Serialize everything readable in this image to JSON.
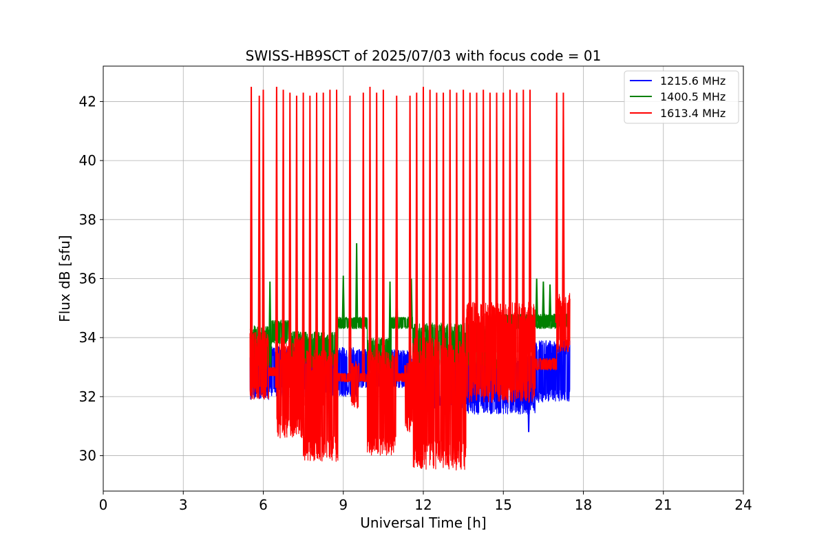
{
  "chart_data": {
    "type": "line",
    "title": "SWISS-HB9SCT of 2025/07/03 with focus code = 01",
    "xlabel": "Universal Time [h]",
    "ylabel": "Flux dB [sfu]",
    "xlim": [
      0,
      24
    ],
    "ylim": [
      28.8,
      43.2
    ],
    "xticks": [
      0,
      3,
      6,
      9,
      12,
      15,
      18,
      21,
      24
    ],
    "yticks": [
      30,
      32,
      34,
      36,
      38,
      40,
      42
    ],
    "grid": true,
    "legend_position": "top-right",
    "series": [
      {
        "name": "1215.6 MHz",
        "color": "#0000ff",
        "time_range": [
          5.5,
          17.5
        ],
        "segments": [
          {
            "start": 5.5,
            "end": 6.2,
            "low": 31.9,
            "high": 33.6
          },
          {
            "start": 6.2,
            "end": 9.5,
            "low": 32.0,
            "high": 33.7
          },
          {
            "start": 9.5,
            "end": 11.5,
            "low": 32.3,
            "high": 33.6
          },
          {
            "start": 11.5,
            "end": 13.6,
            "low": 31.6,
            "high": 33.5
          },
          {
            "start": 13.6,
            "end": 16.2,
            "low": 31.4,
            "high": 33.4
          },
          {
            "start": 16.2,
            "end": 17.5,
            "low": 31.8,
            "high": 33.9
          }
        ],
        "spikes": [
          {
            "x": 15.95,
            "y": 30.8
          }
        ]
      },
      {
        "name": "1400.5 MHz",
        "color": "#008000",
        "time_range": [
          5.5,
          17.5
        ],
        "segments": [
          {
            "start": 5.5,
            "end": 6.3,
            "low": 32.9,
            "high": 34.4
          },
          {
            "start": 6.3,
            "end": 7.0,
            "low": 33.8,
            "high": 34.6
          },
          {
            "start": 7.0,
            "end": 8.8,
            "low": 33.0,
            "high": 34.2
          },
          {
            "start": 8.8,
            "end": 9.9,
            "low": 34.3,
            "high": 34.7
          },
          {
            "start": 9.9,
            "end": 10.8,
            "low": 32.8,
            "high": 34.0
          },
          {
            "start": 10.8,
            "end": 11.6,
            "low": 34.3,
            "high": 34.7
          },
          {
            "start": 11.6,
            "end": 14.8,
            "low": 32.9,
            "high": 34.5
          },
          {
            "start": 14.8,
            "end": 16.3,
            "low": 34.3,
            "high": 34.8
          },
          {
            "start": 16.3,
            "end": 17.5,
            "low": 34.3,
            "high": 34.8
          }
        ],
        "spikes": [
          {
            "x": 6.25,
            "y": 35.9
          },
          {
            "x": 8.75,
            "y": 35.7
          },
          {
            "x": 9.0,
            "y": 36.1
          },
          {
            "x": 9.5,
            "y": 37.2
          },
          {
            "x": 10.75,
            "y": 35.9
          },
          {
            "x": 11.0,
            "y": 35.9
          },
          {
            "x": 11.55,
            "y": 36.0
          },
          {
            "x": 16.25,
            "y": 36.0
          },
          {
            "x": 16.5,
            "y": 35.9
          },
          {
            "x": 16.75,
            "y": 35.8
          }
        ]
      },
      {
        "name": "1613.4 MHz",
        "color": "#ff0000",
        "time_range": [
          5.5,
          17.5
        ],
        "segments": [
          {
            "start": 5.5,
            "end": 6.2,
            "low": 31.9,
            "high": 34.2
          },
          {
            "start": 6.2,
            "end": 6.5,
            "low": 32.7,
            "high": 33.0
          },
          {
            "start": 6.5,
            "end": 7.5,
            "low": 30.6,
            "high": 34.0
          },
          {
            "start": 7.5,
            "end": 8.8,
            "low": 29.8,
            "high": 33.6
          },
          {
            "start": 8.8,
            "end": 9.3,
            "low": 32.5,
            "high": 32.8
          },
          {
            "start": 9.3,
            "end": 9.6,
            "low": 31.6,
            "high": 33.2
          },
          {
            "start": 9.6,
            "end": 9.9,
            "low": 32.5,
            "high": 32.8
          },
          {
            "start": 9.9,
            "end": 11.0,
            "low": 30.0,
            "high": 33.6
          },
          {
            "start": 11.0,
            "end": 11.3,
            "low": 32.5,
            "high": 32.8
          },
          {
            "start": 11.3,
            "end": 11.6,
            "low": 30.8,
            "high": 33.2
          },
          {
            "start": 11.6,
            "end": 13.6,
            "low": 29.5,
            "high": 34.0
          },
          {
            "start": 13.6,
            "end": 16.2,
            "low": 31.8,
            "high": 35.2
          },
          {
            "start": 16.2,
            "end": 17.0,
            "low": 32.9,
            "high": 33.3
          },
          {
            "start": 17.0,
            "end": 17.5,
            "low": 33.5,
            "high": 35.5
          }
        ],
        "spikes": [
          {
            "x": 5.55,
            "y": 42.5
          },
          {
            "x": 5.85,
            "y": 42.2
          },
          {
            "x": 6.0,
            "y": 42.4
          },
          {
            "x": 6.5,
            "y": 42.5
          },
          {
            "x": 6.75,
            "y": 42.4
          },
          {
            "x": 7.0,
            "y": 42.3
          },
          {
            "x": 7.25,
            "y": 42.2
          },
          {
            "x": 7.5,
            "y": 42.3
          },
          {
            "x": 7.75,
            "y": 42.2
          },
          {
            "x": 8.0,
            "y": 42.3
          },
          {
            "x": 8.25,
            "y": 42.3
          },
          {
            "x": 8.5,
            "y": 42.4
          },
          {
            "x": 8.75,
            "y": 42.4
          },
          {
            "x": 9.25,
            "y": 42.2
          },
          {
            "x": 9.75,
            "y": 42.3
          },
          {
            "x": 10.0,
            "y": 42.5
          },
          {
            "x": 10.25,
            "y": 42.3
          },
          {
            "x": 10.5,
            "y": 42.4
          },
          {
            "x": 11.0,
            "y": 42.2
          },
          {
            "x": 11.5,
            "y": 42.2
          },
          {
            "x": 11.75,
            "y": 42.3
          },
          {
            "x": 12.0,
            "y": 42.5
          },
          {
            "x": 12.25,
            "y": 42.4
          },
          {
            "x": 12.5,
            "y": 42.3
          },
          {
            "x": 12.75,
            "y": 42.3
          },
          {
            "x": 13.0,
            "y": 42.4
          },
          {
            "x": 13.25,
            "y": 42.3
          },
          {
            "x": 13.5,
            "y": 42.4
          },
          {
            "x": 13.75,
            "y": 42.3
          },
          {
            "x": 14.0,
            "y": 42.3
          },
          {
            "x": 14.25,
            "y": 42.4
          },
          {
            "x": 14.5,
            "y": 42.3
          },
          {
            "x": 14.75,
            "y": 42.3
          },
          {
            "x": 15.0,
            "y": 42.3
          },
          {
            "x": 15.25,
            "y": 42.4
          },
          {
            "x": 15.5,
            "y": 42.3
          },
          {
            "x": 15.75,
            "y": 42.4
          },
          {
            "x": 16.0,
            "y": 42.4
          },
          {
            "x": 17.0,
            "y": 42.3
          },
          {
            "x": 17.25,
            "y": 42.3
          }
        ]
      }
    ]
  }
}
